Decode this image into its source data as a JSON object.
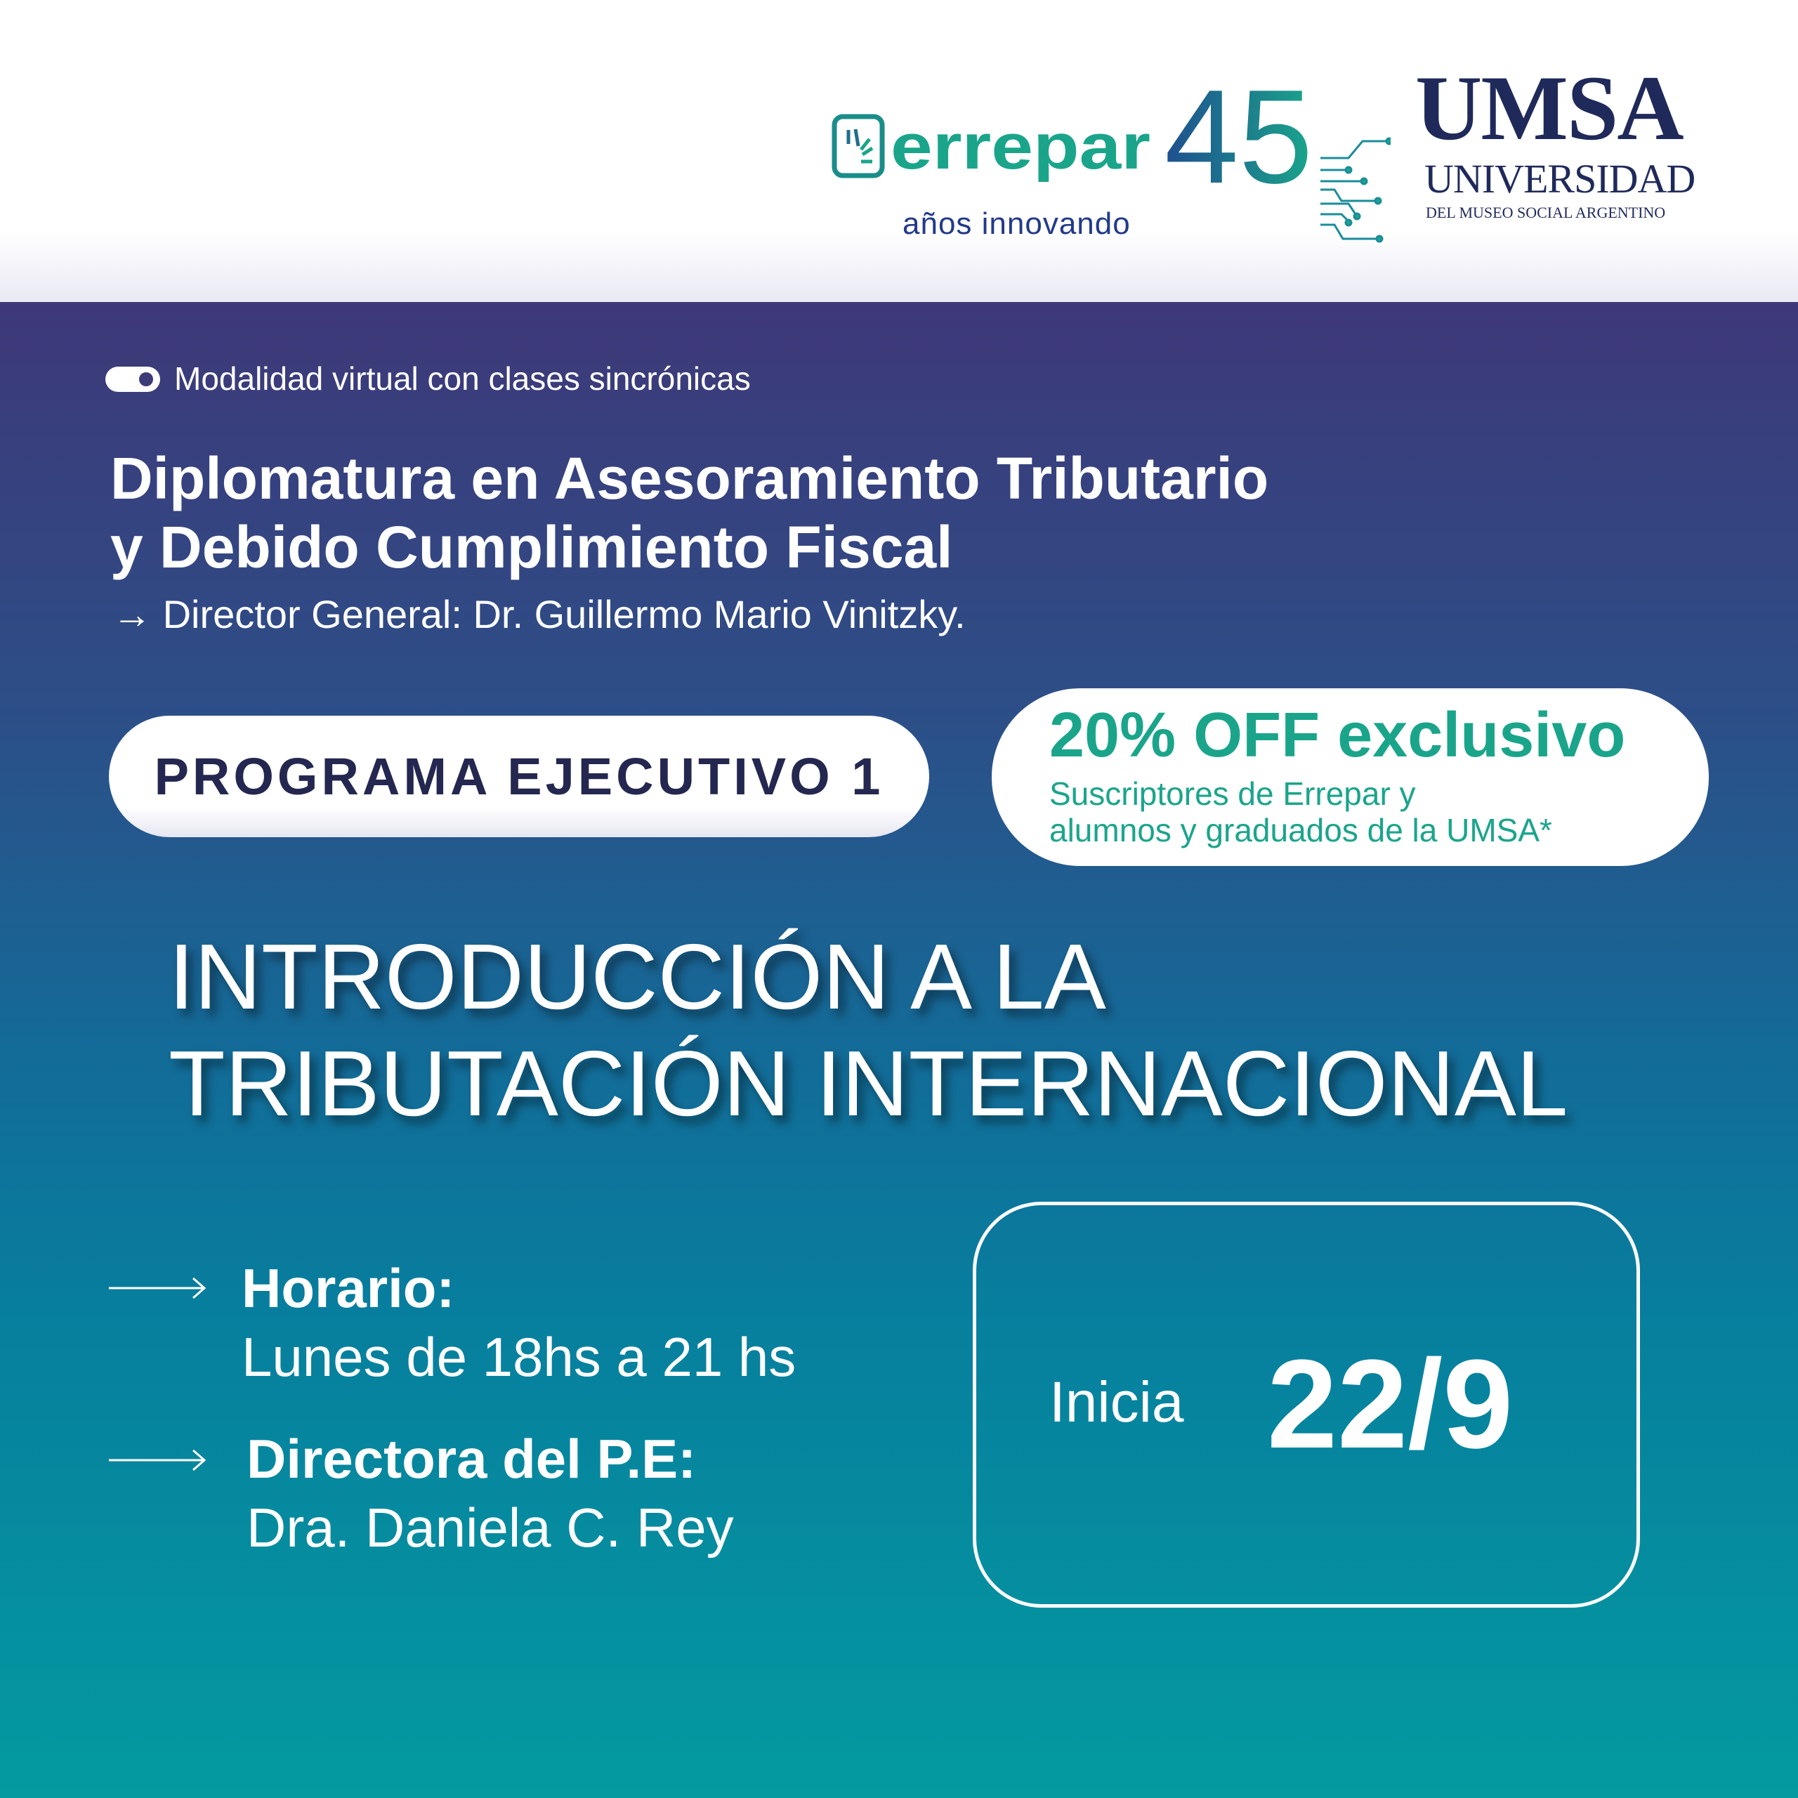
{
  "logos": {
    "errepar": {
      "name": "errepar",
      "anniversary": "45",
      "tagline": "años innovando",
      "color": "#1aa58b"
    },
    "umsa": {
      "name": "UMSA",
      "line1": "UNIVERSIDAD",
      "line2": "DEL MUSEO SOCIAL ARGENTINO",
      "color": "#1f2a5a"
    }
  },
  "modality": {
    "icon": "toggle-icon",
    "text": "Modalidad virtual con clases sincrónicas"
  },
  "program": {
    "title_line1": "Diplomatura en Asesoramiento Tributario",
    "title_line2": "y Debido Cumplimiento Fiscal",
    "director": "Director General: Dr. Guillermo Mario Vinitzky.",
    "arrow": "→"
  },
  "badge": {
    "label": "PROGRAMA EJECUTIVO 1"
  },
  "offer": {
    "headline": "20% OFF exclusivo",
    "line1": "Suscriptores de Errepar y",
    "line2": "alumnos y graduados de la UMSA*",
    "color": "#1aa58b"
  },
  "course": {
    "line1": "INTRODUCCIÓN A LA",
    "line2": "TRIBUTACIÓN INTERNACIONAL"
  },
  "schedule": {
    "label": "Horario:",
    "value": "Lunes de 18hs a 21 hs"
  },
  "directora": {
    "label": "Directora del P.E:",
    "value": "Dra. Daniela C. Rey"
  },
  "start": {
    "label": "Inicia",
    "date": "22/9"
  }
}
